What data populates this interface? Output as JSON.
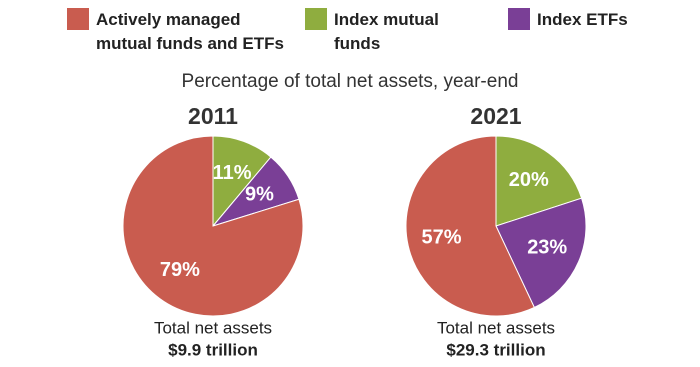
{
  "title": "Percentage of total net assets, year-end",
  "chart_data": [
    {
      "type": "pie",
      "title": "2011",
      "categories": [
        "Actively managed mutual funds and ETFs",
        "Index mutual funds",
        "Index ETFs"
      ],
      "values": [
        79,
        11,
        9
      ],
      "value_labels": [
        "79%",
        "11%",
        "9%"
      ],
      "colors": [
        "#c95c4f",
        "#8fad3f",
        "#7a3f96"
      ],
      "footer": "Total net assets",
      "total": "$9.9 trillion"
    },
    {
      "type": "pie",
      "title": "2021",
      "categories": [
        "Actively managed mutual funds and ETFs",
        "Index mutual funds",
        "Index ETFs"
      ],
      "values": [
        57,
        20,
        23
      ],
      "value_labels": [
        "57%",
        "20%",
        "23%"
      ],
      "colors": [
        "#c95c4f",
        "#8fad3f",
        "#7a3f96"
      ],
      "footer": "Total net assets",
      "total": "$29.3 trillion"
    }
  ]
}
